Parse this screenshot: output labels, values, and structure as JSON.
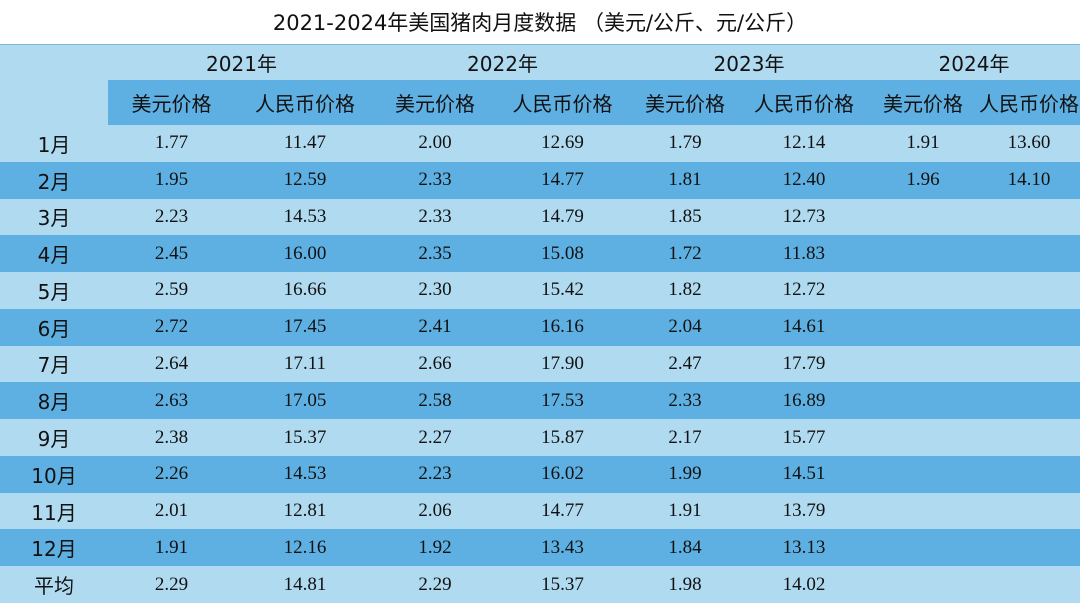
{
  "title": "2021-2024年美国猪肉月度数据 （美元/公斤、元/公斤）",
  "table": {
    "years": [
      "2021年",
      "2022年",
      "2023年",
      "2024年"
    ],
    "subheaders": [
      "美元价格",
      "人民币价格",
      "美元价格",
      "人民币价格",
      "美元价格",
      "人民币价格",
      "美元价格",
      "人民币价格"
    ],
    "rows": [
      {
        "label": "1月",
        "cells": [
          "1.77",
          "11.47",
          "2.00",
          "12.69",
          "1.79",
          "12.14",
          "1.91",
          "13.60"
        ]
      },
      {
        "label": "2月",
        "cells": [
          "1.95",
          "12.59",
          "2.33",
          "14.77",
          "1.81",
          "12.40",
          "1.96",
          "14.10"
        ]
      },
      {
        "label": "3月",
        "cells": [
          "2.23",
          "14.53",
          "2.33",
          "14.79",
          "1.85",
          "12.73"
        ]
      },
      {
        "label": "4月",
        "cells": [
          "2.45",
          "16.00",
          "2.35",
          "15.08",
          "1.72",
          "11.83"
        ]
      },
      {
        "label": "5月",
        "cells": [
          "2.59",
          "16.66",
          "2.30",
          "15.42",
          "1.82",
          "12.72"
        ]
      },
      {
        "label": "6月",
        "cells": [
          "2.72",
          "17.45",
          "2.41",
          "16.16",
          "2.04",
          "14.61"
        ]
      },
      {
        "label": "7月",
        "cells": [
          "2.64",
          "17.11",
          "2.66",
          "17.90",
          "2.47",
          "17.79"
        ]
      },
      {
        "label": "8月",
        "cells": [
          "2.63",
          "17.05",
          "2.58",
          "17.53",
          "2.33",
          "16.89"
        ]
      },
      {
        "label": "9月",
        "cells": [
          "2.38",
          "15.37",
          "2.27",
          "15.87",
          "2.17",
          "15.77"
        ]
      },
      {
        "label": "10月",
        "cells": [
          "2.26",
          "14.53",
          "2.23",
          "16.02",
          "1.99",
          "14.51"
        ]
      },
      {
        "label": "11月",
        "cells": [
          "2.01",
          "12.81",
          "2.06",
          "14.77",
          "1.91",
          "13.79"
        ]
      },
      {
        "label": "12月",
        "cells": [
          "1.91",
          "12.16",
          "1.92",
          "13.43",
          "1.84",
          "13.13"
        ]
      },
      {
        "label": "平均",
        "cells": [
          "2.29",
          "14.81",
          "2.29",
          "15.37",
          "1.98",
          "14.02"
        ]
      }
    ]
  }
}
